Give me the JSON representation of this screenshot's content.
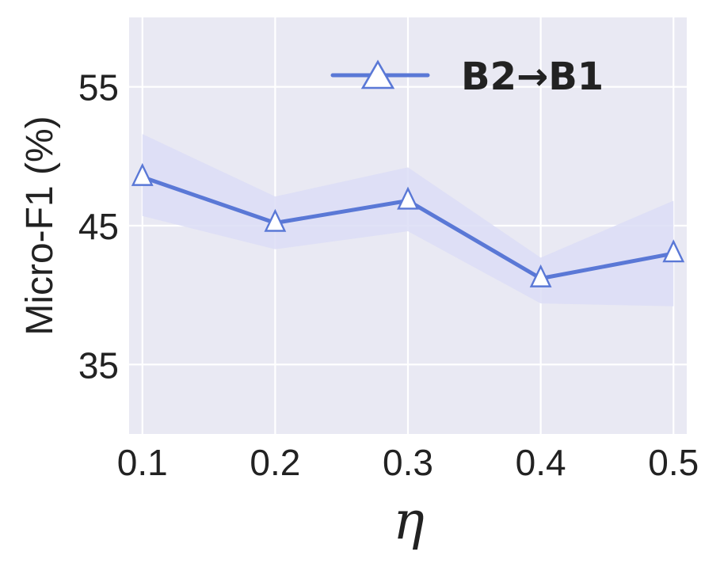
{
  "chart_data": {
    "type": "line",
    "title": "",
    "xlabel": "η",
    "ylabel": "Micro-F1 (%)",
    "x": [
      0.1,
      0.2,
      0.3,
      0.4,
      0.5
    ],
    "x_tick_labels": [
      "0.1",
      "0.2",
      "0.3",
      "0.4",
      "0.5"
    ],
    "y_ticks": [
      35,
      45,
      55
    ],
    "y_tick_labels": [
      "35",
      "45",
      "55"
    ],
    "xlim": [
      0.09,
      0.51
    ],
    "ylim": [
      30,
      60
    ],
    "grid": true,
    "legend_position": "top-right",
    "series": [
      {
        "name": "B2→B1",
        "values": [
          48.5,
          45.2,
          46.8,
          41.2,
          43.0
        ],
        "band_upper": [
          51.6,
          47.1,
          49.2,
          42.7,
          46.8
        ],
        "band_lower": [
          45.7,
          43.3,
          44.6,
          39.4,
          39.2
        ],
        "color": "#5a78d6",
        "band_color": "#dcddf6",
        "marker": "triangle-up-hollow"
      }
    ],
    "plot_background": "#e9e9f3",
    "grid_color": "#ffffff"
  }
}
